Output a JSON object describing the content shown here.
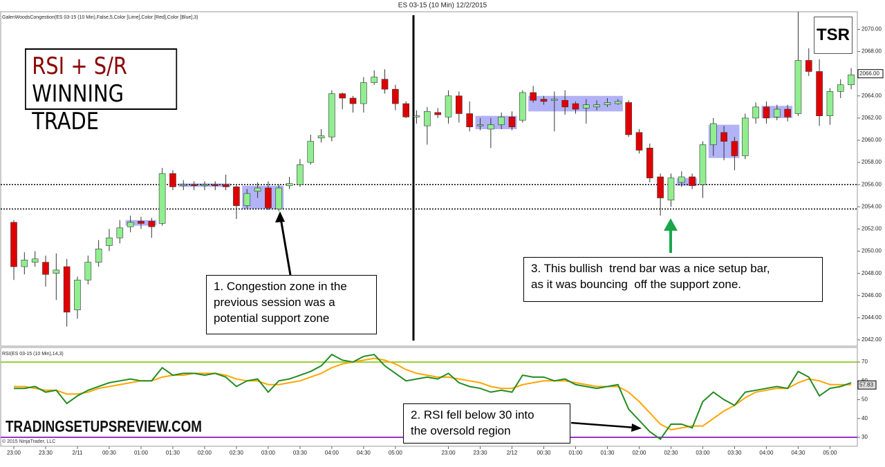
{
  "header": {
    "title": "ES 03-15 (10 Min)  12/2/2015"
  },
  "chart_data": [
    {
      "type": "candlestick",
      "label": "GalenWoodsCongestion(ES 03-15 (10 Min),False,5,Color [Lime],Color [Red],Color [Blue],3)",
      "open": [
        2052.6,
        2048.6,
        2049.0,
        2049.0,
        2048.0,
        2048.6,
        2044.7,
        2047.4,
        2049.0,
        2050.5,
        2051.2,
        2052.2,
        2052.7,
        2052.7,
        2052.5,
        2057.0,
        2055.9,
        2056.0,
        2055.9,
        2056.0,
        2056.0,
        2055.8,
        2054.1,
        2055.4,
        2055.7,
        2053.8,
        2055.9,
        2056.0,
        2058.0,
        2060.2,
        2060.3,
        2064.2,
        2063.8,
        2063.3,
        2065.2,
        2065.5,
        2064.6,
        2063.3,
        2062.1,
        2061.3,
        2062.5,
        2062.1,
        2064.0,
        2062.4,
        2061.3,
        2061.0,
        2061.4,
        2062.1,
        2061.8,
        2064.3,
        2063.7,
        2063.6,
        2063.6,
        2063.3,
        2062.9,
        2063.0,
        2063.2,
        2063.3,
        2063.4,
        2060.7,
        2059.3,
        2056.7,
        2054.6,
        2056.2,
        2056.7,
        2056.0,
        2059.6,
        2060.7,
        2059.9,
        2058.6,
        2062.0,
        2063.0,
        2062.1,
        2062.8,
        2062.4,
        2067.2,
        2066.2,
        2062.2,
        2064.4,
        2065.0
      ],
      "high": [
        2052.8,
        2049.9,
        2050.0,
        2049.6,
        2049.8,
        2049.3,
        2047.7,
        2049.6,
        2051.0,
        2052.0,
        2052.8,
        2053.2,
        2053.1,
        2053.0,
        2057.5,
        2057.3,
        2056.4,
        2056.3,
        2056.3,
        2056.3,
        2056.9,
        2056.0,
        2055.6,
        2056.2,
        2056.3,
        2056.0,
        2056.7,
        2058.3,
        2060.5,
        2061.0,
        2064.5,
        2064.3,
        2064.0,
        2065.7,
        2066.3,
        2066.4,
        2065.0,
        2063.5,
        2062.7,
        2063.0,
        2062.9,
        2064.5,
        2064.4,
        2063.5,
        2062.0,
        2062.0,
        2062.5,
        2062.6,
        2064.5,
        2064.9,
        2064.0,
        2064.4,
        2064.5,
        2063.5,
        2063.7,
        2063.6,
        2063.8,
        2063.7,
        2063.6,
        2061.0,
        2059.7,
        2057.0,
        2057.0,
        2057.2,
        2057.0,
        2059.9,
        2062.0,
        2061.3,
        2060.3,
        2062.4,
        2063.4,
        2063.5,
        2063.2,
        2063.2,
        2071.6,
        2068.3,
        2067.3,
        2064.7,
        2065.5,
        2066.5
      ],
      "low": [
        2047.4,
        2047.9,
        2048.6,
        2046.8,
        2045.6,
        2043.2,
        2043.9,
        2047.0,
        2048.6,
        2050.0,
        2050.7,
        2051.7,
        2052.0,
        2051.2,
        2052.3,
        2055.5,
        2055.5,
        2055.5,
        2055.5,
        2055.5,
        2055.5,
        2052.9,
        2053.9,
        2054.8,
        2053.7,
        2053.6,
        2055.6,
        2055.8,
        2057.8,
        2059.8,
        2059.9,
        2062.8,
        2062.5,
        2062.5,
        2065.0,
        2064.2,
        2062.7,
        2062.0,
        2061.5,
        2059.6,
        2062.0,
        2061.5,
        2061.6,
        2060.8,
        2060.9,
        2059.3,
        2061.0,
        2060.9,
        2061.6,
        2063.4,
        2063.2,
        2060.8,
        2062.3,
        2062.4,
        2061.5,
        2062.7,
        2063.0,
        2063.2,
        2060.3,
        2058.8,
        2056.2,
        2053.2,
        2054.0,
        2055.8,
        2055.6,
        2054.8,
        2058.6,
        2058.2,
        2057.3,
        2058.3,
        2061.5,
        2061.5,
        2061.8,
        2061.7,
        2062.2,
        2065.8,
        2061.3,
        2061.4,
        2063.8,
        2064.6
      ],
      "close": [
        2048.6,
        2049.2,
        2049.3,
        2047.9,
        2048.3,
        2044.5,
        2047.4,
        2049.0,
        2050.2,
        2051.2,
        2052.1,
        2052.6,
        2052.5,
        2052.2,
        2057.0,
        2055.8,
        2056.0,
        2055.9,
        2056.0,
        2055.9,
        2055.8,
        2054.1,
        2055.2,
        2055.7,
        2053.9,
        2055.7,
        2056.1,
        2057.8,
        2059.9,
        2060.4,
        2064.2,
        2063.8,
        2063.3,
        2065.2,
        2065.7,
        2064.6,
        2063.3,
        2062.1,
        2062.2,
        2062.6,
        2062.3,
        2064.0,
        2062.4,
        2061.2,
        2061.4,
        2061.4,
        2062.1,
        2061.2,
        2064.3,
        2063.6,
        2063.5,
        2063.7,
        2063.0,
        2062.8,
        2063.2,
        2063.2,
        2063.4,
        2063.5,
        2060.5,
        2059.1,
        2056.6,
        2054.8,
        2056.6,
        2056.7,
        2055.9,
        2059.6,
        2061.5,
        2059.9,
        2058.6,
        2062.0,
        2063.0,
        2062.0,
        2062.8,
        2062.1,
        2067.2,
        2066.2,
        2062.2,
        2064.4,
        2065.0,
        2065.9
      ],
      "up_color": "#90ee90",
      "down_color": "#e00000",
      "zones": [
        {
          "start": 11,
          "end": 13,
          "low": 2052.3,
          "high": 2052.8
        },
        {
          "start": 16,
          "end": 20,
          "low": 2055.8,
          "high": 2056.1
        },
        {
          "start": 22,
          "end": 25,
          "low": 2053.8,
          "high": 2055.9
        },
        {
          "start": 44,
          "end": 47,
          "low": 2061.0,
          "high": 2062.2
        },
        {
          "start": 49,
          "end": 57,
          "low": 2062.6,
          "high": 2064.0
        },
        {
          "start": 63,
          "end": 64,
          "low": 2055.9,
          "high": 2056.6
        },
        {
          "start": 66,
          "end": 68,
          "low": 2058.4,
          "high": 2061.4
        },
        {
          "start": 71,
          "end": 73,
          "low": 2062.0,
          "high": 2063.1
        }
      ],
      "zone_color": "#5555ee",
      "hlines": [
        2056,
        2053.8
      ],
      "ylim": [
        2041.5,
        2071.4
      ],
      "yticks": [
        {
          "value": 2042,
          "label": "2042.00"
        },
        {
          "value": 2044,
          "label": "2044.00"
        },
        {
          "value": 2046,
          "label": "2046.00"
        },
        {
          "value": 2048,
          "label": "2048.00"
        },
        {
          "value": 2050,
          "label": "2050.00"
        },
        {
          "value": 2052,
          "label": "2052.00"
        },
        {
          "value": 2054,
          "label": "2054.00"
        },
        {
          "value": 2056,
          "label": "2056.00"
        },
        {
          "value": 2058,
          "label": "2058.00"
        },
        {
          "value": 2060,
          "label": "2060.00"
        },
        {
          "value": 2062,
          "label": "2062.00"
        },
        {
          "value": 2064,
          "label": "2064.00"
        },
        {
          "value": 2066,
          "label": "2066.00"
        },
        {
          "value": 2068,
          "label": "2068.00"
        },
        {
          "value": 2070,
          "label": "2070.00"
        }
      ],
      "last": {
        "value": 2066,
        "label": "2066.00"
      }
    },
    {
      "type": "line",
      "label": "RSI(ES 03-15 (10 Min),14,3)",
      "categories": [
        "23:00",
        null,
        null,
        "23:30",
        null,
        null,
        "2/11",
        null,
        null,
        "00:30",
        null,
        null,
        "01:00",
        null,
        null,
        "01:30",
        null,
        null,
        "02:00",
        null,
        null,
        "02:30",
        null,
        null,
        "03:00",
        null,
        null,
        "03:30",
        null,
        null,
        "04:00",
        null,
        null,
        "04:30",
        null,
        null,
        "05:00",
        null,
        null,
        null,
        null,
        "23:00",
        null,
        null,
        "23:30",
        null,
        null,
        "2/12",
        null,
        null,
        "00:30",
        null,
        null,
        "01:00",
        null,
        null,
        "01:30",
        null,
        null,
        "02:00",
        null,
        null,
        "02:30",
        null,
        null,
        "03:00",
        null,
        null,
        "03:30",
        null,
        null,
        "04:00",
        null,
        null,
        "04:30",
        null,
        null,
        "05:00",
        null,
        null
      ],
      "series": [
        {
          "color": "#ffa500",
          "values": [
            57,
            57,
            56,
            55,
            55,
            53,
            53,
            54,
            56,
            57,
            58,
            59,
            60,
            60,
            62,
            63,
            63,
            64,
            64,
            64,
            63,
            61,
            60,
            60,
            58,
            58,
            59,
            60,
            62,
            64,
            67,
            69,
            70,
            71,
            72,
            71,
            69,
            66,
            64,
            63,
            62,
            62,
            61,
            60,
            59,
            57,
            56,
            56,
            58,
            59,
            60,
            60,
            60,
            59,
            58,
            57,
            57,
            57,
            54,
            49,
            43,
            37,
            34,
            35,
            36,
            36,
            40,
            44,
            47,
            51,
            54,
            55,
            56,
            56,
            59,
            61,
            60,
            58,
            58,
            58
          ]
        },
        {
          "color": "#228b22",
          "values": [
            56,
            56,
            57,
            54,
            55,
            48,
            52,
            55,
            57,
            59,
            60,
            61,
            60,
            60,
            67,
            63,
            64,
            64,
            63,
            64,
            62,
            57,
            60,
            61,
            54,
            60,
            61,
            63,
            65,
            68,
            74,
            71,
            70,
            73,
            74,
            68,
            64,
            60,
            61,
            62,
            61,
            64,
            59,
            57,
            56,
            54,
            55,
            54,
            63,
            62,
            62,
            60,
            61,
            58,
            57,
            56,
            57,
            58,
            45,
            39,
            33,
            29,
            37,
            37,
            35,
            49,
            54,
            50,
            47,
            54,
            55,
            56,
            57,
            56,
            65,
            62,
            52,
            56,
            57,
            59
          ]
        }
      ],
      "levels": [
        {
          "value": 70,
          "color": "#9acd32"
        },
        {
          "value": 30,
          "color": "#9932cc"
        }
      ],
      "ylim": [
        25.6,
        77
      ],
      "yticks": [
        30,
        40,
        50,
        60,
        70
      ],
      "last": 57.83
    }
  ],
  "logo": {
    "line1": "RSI + S/R",
    "line2": "WINNING TRADE"
  },
  "badge": "TSR",
  "watermark": "TRADINGSETUPSREVIEW.COM",
  "copyright": "© 2015 NinjaTrader, LLC",
  "annotations": [
    {
      "lines": [
        "1. Congestion zone in the",
        "previous session was a",
        "potential support zone"
      ]
    },
    {
      "lines": [
        "2. RSI fell below 30 into",
        "the oversold region"
      ]
    },
    {
      "lines": [
        "3. This bullish  trend bar was a nice setup bar,",
        "as it was bouncing  off the support zone."
      ]
    }
  ]
}
